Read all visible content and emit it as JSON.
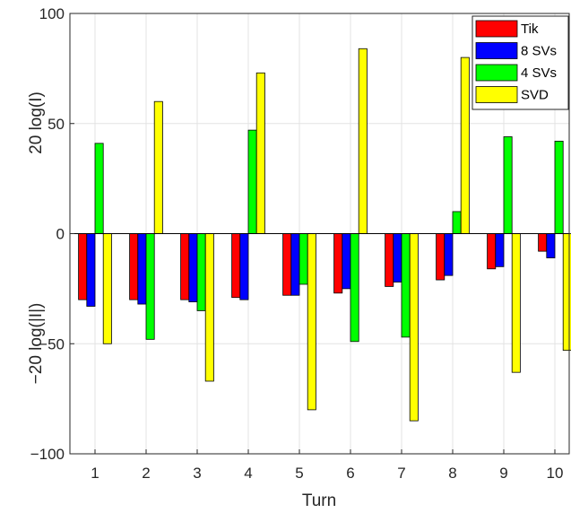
{
  "chart_data": {
    "type": "bar",
    "categories": [
      "1",
      "2",
      "3",
      "4",
      "5",
      "6",
      "7",
      "8",
      "9",
      "10"
    ],
    "series": [
      {
        "name": "Tik",
        "color": "#ff0000",
        "values": [
          -30,
          -30,
          -30,
          -29,
          -28,
          -27,
          -24,
          -21,
          -16,
          -8
        ]
      },
      {
        "name": "8 SVs",
        "color": "#0000ff",
        "values": [
          -33,
          -32,
          -31,
          -30,
          -28,
          -25,
          -22,
          -19,
          -15,
          -11
        ]
      },
      {
        "name": "4 SVs",
        "color": "#00ff00",
        "values": [
          41,
          -48,
          -35,
          47,
          -23,
          -49,
          -47,
          10,
          44,
          42
        ]
      },
      {
        "name": "SVD",
        "color": "#ffff00",
        "values": [
          -50,
          60,
          -67,
          73,
          -80,
          84,
          -85,
          80,
          -63,
          -53
        ]
      }
    ],
    "xlabel": "Turn",
    "ylabel_top": "20 log(I)",
    "ylabel_bottom": "−20 log(|I|)",
    "ylim": [
      -100,
      100
    ],
    "yticks": [
      "100",
      "50",
      "0",
      "−50",
      "−100"
    ],
    "ytick_values": [
      100,
      50,
      0,
      -50,
      -100
    ],
    "grid": true,
    "legend_position": "top-right"
  }
}
